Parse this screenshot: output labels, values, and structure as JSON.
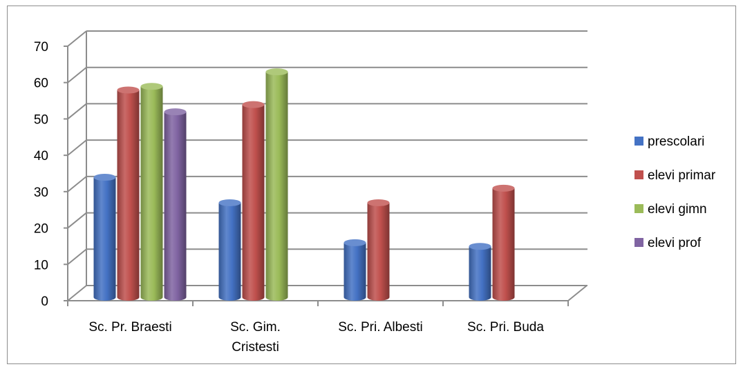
{
  "chart_data": {
    "type": "bar",
    "categories": [
      [
        "Sc. Pr. Braesti"
      ],
      [
        "Sc. Gim.",
        "Cristesti"
      ],
      [
        "Sc. Pri. Albesti"
      ],
      [
        "Sc. Pri. Buda"
      ]
    ],
    "series": [
      {
        "name": "prescolari",
        "values": [
          33,
          26,
          15,
          14
        ],
        "color": "#4472C4"
      },
      {
        "name": "elevi primar",
        "values": [
          57,
          53,
          26,
          30
        ],
        "color": "#C0504D"
      },
      {
        "name": "elevi gimn",
        "values": [
          58,
          62,
          null,
          null
        ],
        "color": "#9BBB59"
      },
      {
        "name": "elevi prof",
        "values": [
          51,
          null,
          null,
          null
        ],
        "color": "#8064A2"
      }
    ],
    "ylim": [
      0,
      70
    ],
    "yticks": [
      0,
      10,
      20,
      30,
      40,
      50,
      60,
      70
    ],
    "grid": true,
    "legend_position": "right",
    "style": "3d-cylinder"
  }
}
